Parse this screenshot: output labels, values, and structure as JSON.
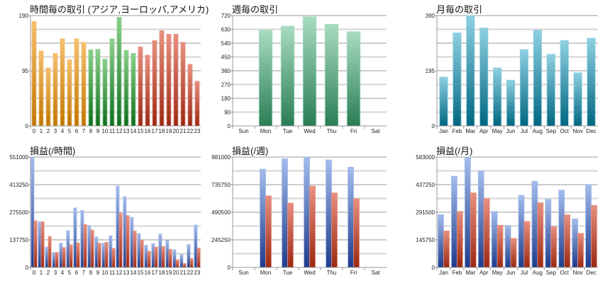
{
  "colors": {
    "orange": [
      "#f5c070",
      "#c07500"
    ],
    "green": [
      "#8cd08c",
      "#0e6e1e"
    ],
    "red": [
      "#e89080",
      "#9a2812"
    ],
    "weekgreen": [
      "#a8dcc0",
      "#2a7d55"
    ],
    "teal": [
      "#8fd0e2",
      "#006680"
    ],
    "blue": [
      "#a4bcec",
      "#1e3c8c"
    ]
  },
  "chart_data": [
    {
      "type": "bar",
      "title": "時間毎の取引 (アジア,ヨーロッパ,アメリカ)",
      "categories": [
        "0",
        "1",
        "2",
        "3",
        "4",
        "5",
        "6",
        "7",
        "8",
        "9",
        "10",
        "11",
        "12",
        "13",
        "14",
        "15",
        "16",
        "17",
        "18",
        "19",
        "20",
        "21",
        "22",
        "23"
      ],
      "series": [
        {
          "values": [
            180,
            129,
            100,
            125,
            150,
            114,
            150,
            144,
            131,
            132,
            115,
            150,
            187,
            130,
            125,
            136,
            122,
            147,
            164,
            158,
            158,
            144,
            106,
            77
          ]
        }
      ],
      "region_colors": [
        "orange",
        "orange",
        "orange",
        "orange",
        "orange",
        "orange",
        "orange",
        "orange",
        "green",
        "green",
        "green",
        "green",
        "green",
        "green",
        "green",
        "red",
        "red",
        "red",
        "red",
        "red",
        "red",
        "red",
        "red",
        "red"
      ],
      "ylim": [
        0,
        190
      ],
      "yticks": [
        "0",
        "95",
        "190"
      ],
      "grid": true
    },
    {
      "type": "bar",
      "title": "週毎の取引",
      "categories": [
        "Sun",
        "Mon",
        "Tue",
        "Wed",
        "Thu",
        "Fri",
        "Sat"
      ],
      "series": [
        {
          "values": [
            null,
            625,
            651,
            712,
            663,
            615,
            null
          ],
          "color": "weekgreen"
        }
      ],
      "ylim": [
        0,
        720
      ],
      "yticks": [
        "0",
        "90",
        "180",
        "270",
        "360",
        "450",
        "540",
        "630",
        "720"
      ],
      "grid": true
    },
    {
      "type": "bar",
      "title": "月毎の取引",
      "categories": [
        "Jan",
        "Feb",
        "Mar",
        "Apr",
        "May",
        "Jun",
        "Jul",
        "Aug",
        "Sep",
        "Oct",
        "Nov",
        "Dec"
      ],
      "series": [
        {
          "values": [
            173,
            329,
            390,
            346,
            205,
            162,
            270,
            338,
            253,
            302,
            188,
            310
          ],
          "color": "teal"
        }
      ],
      "ylim": [
        0,
        390
      ],
      "yticks": [
        "0",
        "195",
        "390"
      ],
      "grid": true
    },
    {
      "type": "bar",
      "title": "損益(/時間)",
      "categories": [
        "0",
        "1",
        "2",
        "3",
        "4",
        "5",
        "6",
        "7",
        "8",
        "9",
        "10",
        "11",
        "12",
        "13",
        "14",
        "15",
        "16",
        "17",
        "18",
        "19",
        "20",
        "21",
        "22",
        "23"
      ],
      "series": [
        {
          "values": [
            551000,
            228000,
            102000,
            74000,
            121000,
            184000,
            297000,
            285000,
            210000,
            152000,
            121000,
            158000,
            406000,
            354000,
            251000,
            169000,
            111000,
            119000,
            167000,
            135000,
            88000,
            65000,
            115000,
            212000
          ],
          "color": "blue"
        },
        {
          "values": [
            233000,
            228000,
            155000,
            75000,
            99000,
            113000,
            122000,
            214000,
            187000,
            121000,
            126000,
            95000,
            270000,
            259000,
            182000,
            135000,
            81000,
            102000,
            105000,
            91000,
            39000,
            20000,
            45000,
            97000
          ],
          "color": "red"
        }
      ],
      "ylim": [
        0,
        551000
      ],
      "yticks": [
        "0",
        "137750",
        "275500",
        "413250",
        "551000"
      ],
      "grid": true
    },
    {
      "type": "bar",
      "title": "損益(/週)",
      "categories": [
        "Sun",
        "Mon",
        "Tue",
        "Wed",
        "Thu",
        "Fri",
        "Sat"
      ],
      "series": [
        {
          "values": [
            null,
            874000,
            966000,
            981000,
            956000,
            891000,
            null
          ],
          "color": "blue"
        },
        {
          "values": [
            null,
            637000,
            572000,
            723000,
            662000,
            612000,
            null
          ],
          "color": "red"
        }
      ],
      "ylim": [
        0,
        981000
      ],
      "yticks": [
        "0",
        "245250",
        "490500",
        "735750",
        "981000"
      ],
      "grid": true
    },
    {
      "type": "bar",
      "title": "損益(/月)",
      "categories": [
        "Jan",
        "Feb",
        "Mar",
        "Apr",
        "May",
        "Jun",
        "Jul",
        "Aug",
        "Sep",
        "Oct",
        "Nov",
        "Dec"
      ],
      "series": [
        {
          "values": [
            279000,
            482000,
            583000,
            511000,
            296000,
            222000,
            381000,
            455000,
            360000,
            409000,
            257000,
            438000
          ],
          "color": "blue"
        },
        {
          "values": [
            193000,
            296000,
            394000,
            364000,
            223000,
            154000,
            243000,
            342000,
            215000,
            278000,
            180000,
            328000
          ],
          "color": "red"
        }
      ],
      "ylim": [
        0,
        583000
      ],
      "yticks": [
        "0",
        "145750",
        "291500",
        "437250",
        "583000"
      ],
      "grid": true
    }
  ]
}
